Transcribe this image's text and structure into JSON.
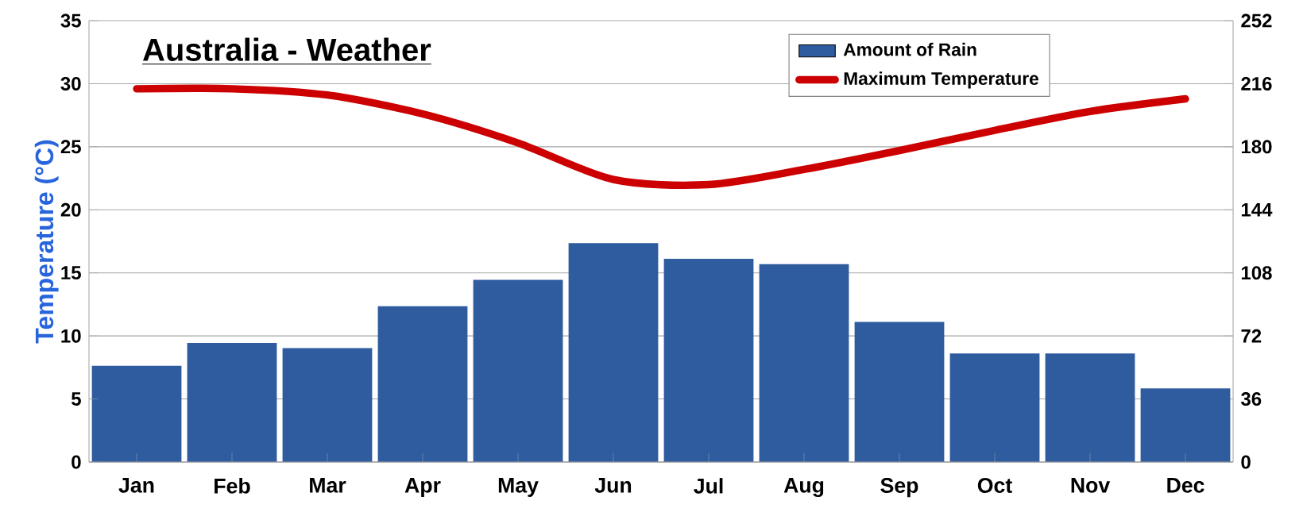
{
  "chart_data": {
    "type": "bar",
    "title": "Australia - Weather",
    "ylabel": "Temperature (°C)",
    "categories": [
      "Jan",
      "Feb",
      "Mar",
      "Apr",
      "May",
      "Jun",
      "Jul",
      "Aug",
      "Sep",
      "Oct",
      "Nov",
      "Dec"
    ],
    "series": [
      {
        "name": "Amount of Rain",
        "axis": "y2",
        "color": "#2e5c9e",
        "values": [
          55,
          68,
          65,
          89,
          104,
          125,
          116,
          113,
          80,
          62,
          62,
          42
        ]
      },
      {
        "name": "Maximum Temperature",
        "type": "line",
        "color": "#cc0000",
        "values": [
          29.6,
          29.6,
          29.1,
          27.6,
          25.3,
          22.4,
          22.0,
          23.2,
          24.7,
          26.3,
          27.8,
          28.8
        ]
      }
    ],
    "ylim": [
      0,
      35
    ],
    "yticks": [
      0,
      5,
      10,
      15,
      20,
      25,
      30,
      35
    ],
    "y2lim": [
      0,
      252
    ],
    "y2ticks": [
      0,
      36,
      72,
      108,
      144,
      180,
      216,
      252
    ],
    "grid": "y",
    "legend": "top right"
  }
}
